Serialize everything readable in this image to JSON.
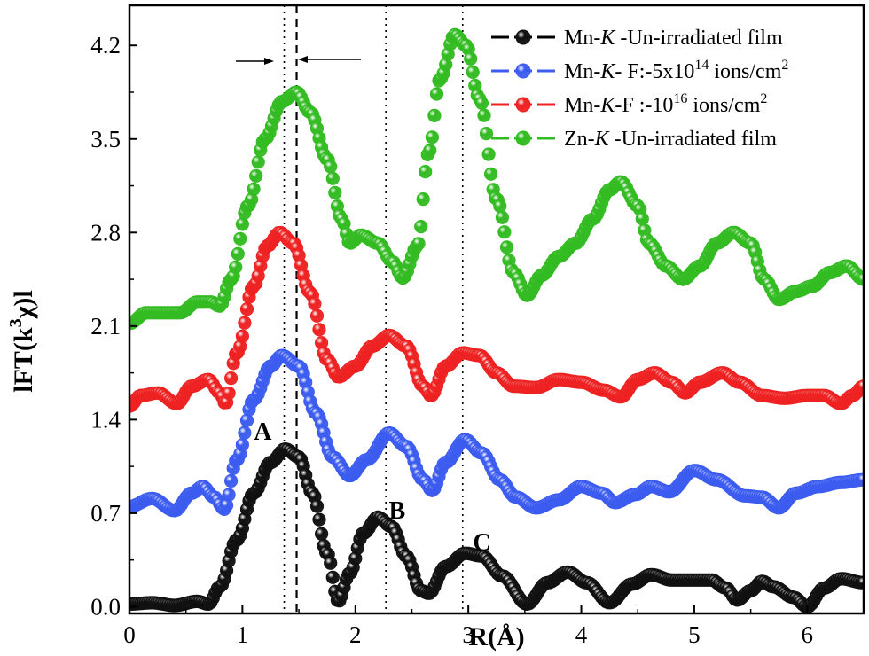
{
  "chart_data": {
    "type": "scatter",
    "xlabel": "R(Å)",
    "ylabel_parts": {
      "pre": "lFT(k",
      "sup": "3",
      "post": "χ)l"
    },
    "xlim": [
      0,
      6.5
    ],
    "ylim": [
      -0.05,
      4.5
    ],
    "xticks": [
      0,
      1,
      2,
      3,
      4,
      5,
      6
    ],
    "yticks": [
      0.0,
      0.7,
      1.4,
      2.1,
      2.8,
      3.5,
      4.2
    ],
    "xtick_labels": [
      "0",
      "1",
      "2",
      "3",
      "4",
      "5",
      "6"
    ],
    "ytick_labels": [
      "0.0",
      "0.7",
      "1.4",
      "2.1",
      "2.8",
      "3.5",
      "4.2"
    ],
    "grid": false,
    "legend_position": "top-right",
    "vlines": [
      {
        "x": 1.37,
        "style": "dotted"
      },
      {
        "x": 1.48,
        "style": "dashed"
      },
      {
        "x": 2.27,
        "style": "dotted"
      },
      {
        "x": 2.95,
        "style": "dotted"
      }
    ],
    "annotations": [
      {
        "text": "A",
        "x": 1.18,
        "y": 1.25
      },
      {
        "text": "B",
        "x": 2.37,
        "y": 0.66
      },
      {
        "text": "C",
        "x": 3.12,
        "y": 0.42
      }
    ],
    "series": [
      {
        "name": "Mn-K -Un-irradiated film",
        "legend": {
          "a": "Mn-",
          "i": "K",
          "b": " -Un-irradiated film",
          "sup": "",
          "c": "",
          "sup2": "",
          "d": ""
        },
        "color": "#111111",
        "points": [
          [
            0,
            0.02
          ],
          [
            0.2,
            0.03
          ],
          [
            0.4,
            0.01
          ],
          [
            0.6,
            0.04
          ],
          [
            0.7,
            0.02
          ],
          [
            0.8,
            0.15
          ],
          [
            0.95,
            0.5
          ],
          [
            1.1,
            0.85
          ],
          [
            1.25,
            1.08
          ],
          [
            1.38,
            1.18
          ],
          [
            1.5,
            1.12
          ],
          [
            1.62,
            0.85
          ],
          [
            1.75,
            0.4
          ],
          [
            1.85,
            0.04
          ],
          [
            1.95,
            0.25
          ],
          [
            2.07,
            0.55
          ],
          [
            2.2,
            0.67
          ],
          [
            2.32,
            0.6
          ],
          [
            2.45,
            0.38
          ],
          [
            2.58,
            0.12
          ],
          [
            2.65,
            0.1
          ],
          [
            2.8,
            0.3
          ],
          [
            2.97,
            0.4
          ],
          [
            3.12,
            0.38
          ],
          [
            3.3,
            0.23
          ],
          [
            3.52,
            0.02
          ],
          [
            3.7,
            0.18
          ],
          [
            3.88,
            0.26
          ],
          [
            4.05,
            0.18
          ],
          [
            4.25,
            0.03
          ],
          [
            4.45,
            0.17
          ],
          [
            4.62,
            0.24
          ],
          [
            4.8,
            0.2
          ],
          [
            5.0,
            0.2
          ],
          [
            5.15,
            0.2
          ],
          [
            5.28,
            0.14
          ],
          [
            5.38,
            0.05
          ],
          [
            5.5,
            0.12
          ],
          [
            5.6,
            0.19
          ],
          [
            5.7,
            0.15
          ],
          [
            5.88,
            0.07
          ],
          [
            6.0,
            0.0
          ],
          [
            6.15,
            0.14
          ],
          [
            6.3,
            0.21
          ],
          [
            6.5,
            0.18
          ]
        ]
      },
      {
        "name": "Mn-K- F:-5x10^14 ions/cm^2",
        "legend": {
          "a": "Mn-",
          "i": "K",
          "b": "- F:-5x10",
          "sup": "14",
          "c": " ions/cm",
          "sup2": "2",
          "d": ""
        },
        "color": "#3c5cf0",
        "points": [
          [
            0,
            0.75
          ],
          [
            0.2,
            0.81
          ],
          [
            0.4,
            0.72
          ],
          [
            0.55,
            0.85
          ],
          [
            0.65,
            0.9
          ],
          [
            0.75,
            0.82
          ],
          [
            0.84,
            0.73
          ],
          [
            0.95,
            1.1
          ],
          [
            1.1,
            1.55
          ],
          [
            1.25,
            1.8
          ],
          [
            1.35,
            1.88
          ],
          [
            1.5,
            1.8
          ],
          [
            1.65,
            1.45
          ],
          [
            1.8,
            1.12
          ],
          [
            1.95,
            0.98
          ],
          [
            2.1,
            1.1
          ],
          [
            2.3,
            1.3
          ],
          [
            2.45,
            1.2
          ],
          [
            2.6,
            0.95
          ],
          [
            2.68,
            0.87
          ],
          [
            2.8,
            1.08
          ],
          [
            2.97,
            1.25
          ],
          [
            3.12,
            1.15
          ],
          [
            3.28,
            0.95
          ],
          [
            3.42,
            0.82
          ],
          [
            3.6,
            0.74
          ],
          [
            3.8,
            0.8
          ],
          [
            4.0,
            0.9
          ],
          [
            4.18,
            0.85
          ],
          [
            4.3,
            0.78
          ],
          [
            4.48,
            0.84
          ],
          [
            4.62,
            0.9
          ],
          [
            4.78,
            0.86
          ],
          [
            5.0,
            1.02
          ],
          [
            5.2,
            0.95
          ],
          [
            5.45,
            0.83
          ],
          [
            5.6,
            0.82
          ],
          [
            5.75,
            0.74
          ],
          [
            5.9,
            0.85
          ],
          [
            6.1,
            0.9
          ],
          [
            6.3,
            0.93
          ],
          [
            6.5,
            0.95
          ]
        ]
      },
      {
        "name": "Mn-K-F :-10^16 ions/cm^2",
        "legend": {
          "a": "Mn-",
          "i": "K",
          "b": "-F :-10",
          "sup": "16",
          "c": " ions/cm",
          "sup2": "2",
          "d": ""
        },
        "color": "#ee2222",
        "points": [
          [
            0,
            1.5
          ],
          [
            0.1,
            1.58
          ],
          [
            0.25,
            1.6
          ],
          [
            0.42,
            1.52
          ],
          [
            0.55,
            1.65
          ],
          [
            0.7,
            1.7
          ],
          [
            0.8,
            1.6
          ],
          [
            0.85,
            1.52
          ],
          [
            0.95,
            1.9
          ],
          [
            1.1,
            2.4
          ],
          [
            1.22,
            2.7
          ],
          [
            1.33,
            2.8
          ],
          [
            1.45,
            2.72
          ],
          [
            1.6,
            2.35
          ],
          [
            1.75,
            1.85
          ],
          [
            1.85,
            1.72
          ],
          [
            2.0,
            1.8
          ],
          [
            2.15,
            1.95
          ],
          [
            2.3,
            2.03
          ],
          [
            2.45,
            1.95
          ],
          [
            2.6,
            1.65
          ],
          [
            2.67,
            1.58
          ],
          [
            2.8,
            1.8
          ],
          [
            2.95,
            1.9
          ],
          [
            3.1,
            1.88
          ],
          [
            3.25,
            1.75
          ],
          [
            3.4,
            1.65
          ],
          [
            3.6,
            1.64
          ],
          [
            3.8,
            1.7
          ],
          [
            4.0,
            1.68
          ],
          [
            4.2,
            1.62
          ],
          [
            4.35,
            1.57
          ],
          [
            4.5,
            1.7
          ],
          [
            4.65,
            1.75
          ],
          [
            4.8,
            1.68
          ],
          [
            4.92,
            1.6
          ],
          [
            5.05,
            1.68
          ],
          [
            5.25,
            1.75
          ],
          [
            5.4,
            1.68
          ],
          [
            5.6,
            1.58
          ],
          [
            5.8,
            1.56
          ],
          [
            6.0,
            1.58
          ],
          [
            6.15,
            1.58
          ],
          [
            6.3,
            1.52
          ],
          [
            6.4,
            1.58
          ],
          [
            6.5,
            1.65
          ]
        ]
      },
      {
        "name": "Zn-K -Un-irradiated film",
        "legend": {
          "a": "Zn-",
          "i": "K",
          "b": " -Un-irradiated film",
          "sup": "",
          "c": "",
          "sup2": "",
          "d": ""
        },
        "color": "#33bb22",
        "points": [
          [
            0,
            2.12
          ],
          [
            0.15,
            2.2
          ],
          [
            0.3,
            2.2
          ],
          [
            0.45,
            2.2
          ],
          [
            0.6,
            2.28
          ],
          [
            0.72,
            2.28
          ],
          [
            0.8,
            2.25
          ],
          [
            0.9,
            2.45
          ],
          [
            1.05,
            3.0
          ],
          [
            1.2,
            3.5
          ],
          [
            1.35,
            3.78
          ],
          [
            1.48,
            3.85
          ],
          [
            1.6,
            3.7
          ],
          [
            1.75,
            3.35
          ],
          [
            1.88,
            2.9
          ],
          [
            1.95,
            2.72
          ],
          [
            2.05,
            2.78
          ],
          [
            2.2,
            2.72
          ],
          [
            2.33,
            2.58
          ],
          [
            2.42,
            2.46
          ],
          [
            2.55,
            2.7
          ],
          [
            2.65,
            3.4
          ],
          [
            2.75,
            3.95
          ],
          [
            2.88,
            4.28
          ],
          [
            2.98,
            4.2
          ],
          [
            3.1,
            3.8
          ],
          [
            3.25,
            3.05
          ],
          [
            3.4,
            2.5
          ],
          [
            3.52,
            2.33
          ],
          [
            3.65,
            2.48
          ],
          [
            3.8,
            2.62
          ],
          [
            3.95,
            2.72
          ],
          [
            4.1,
            2.9
          ],
          [
            4.25,
            3.12
          ],
          [
            4.35,
            3.18
          ],
          [
            4.5,
            3.0
          ],
          [
            4.6,
            2.72
          ],
          [
            4.75,
            2.55
          ],
          [
            4.9,
            2.45
          ],
          [
            5.05,
            2.55
          ],
          [
            5.2,
            2.72
          ],
          [
            5.35,
            2.8
          ],
          [
            5.5,
            2.72
          ],
          [
            5.62,
            2.45
          ],
          [
            5.75,
            2.3
          ],
          [
            5.9,
            2.36
          ],
          [
            6.05,
            2.4
          ],
          [
            6.2,
            2.5
          ],
          [
            6.35,
            2.55
          ],
          [
            6.5,
            2.45
          ]
        ]
      }
    ]
  }
}
